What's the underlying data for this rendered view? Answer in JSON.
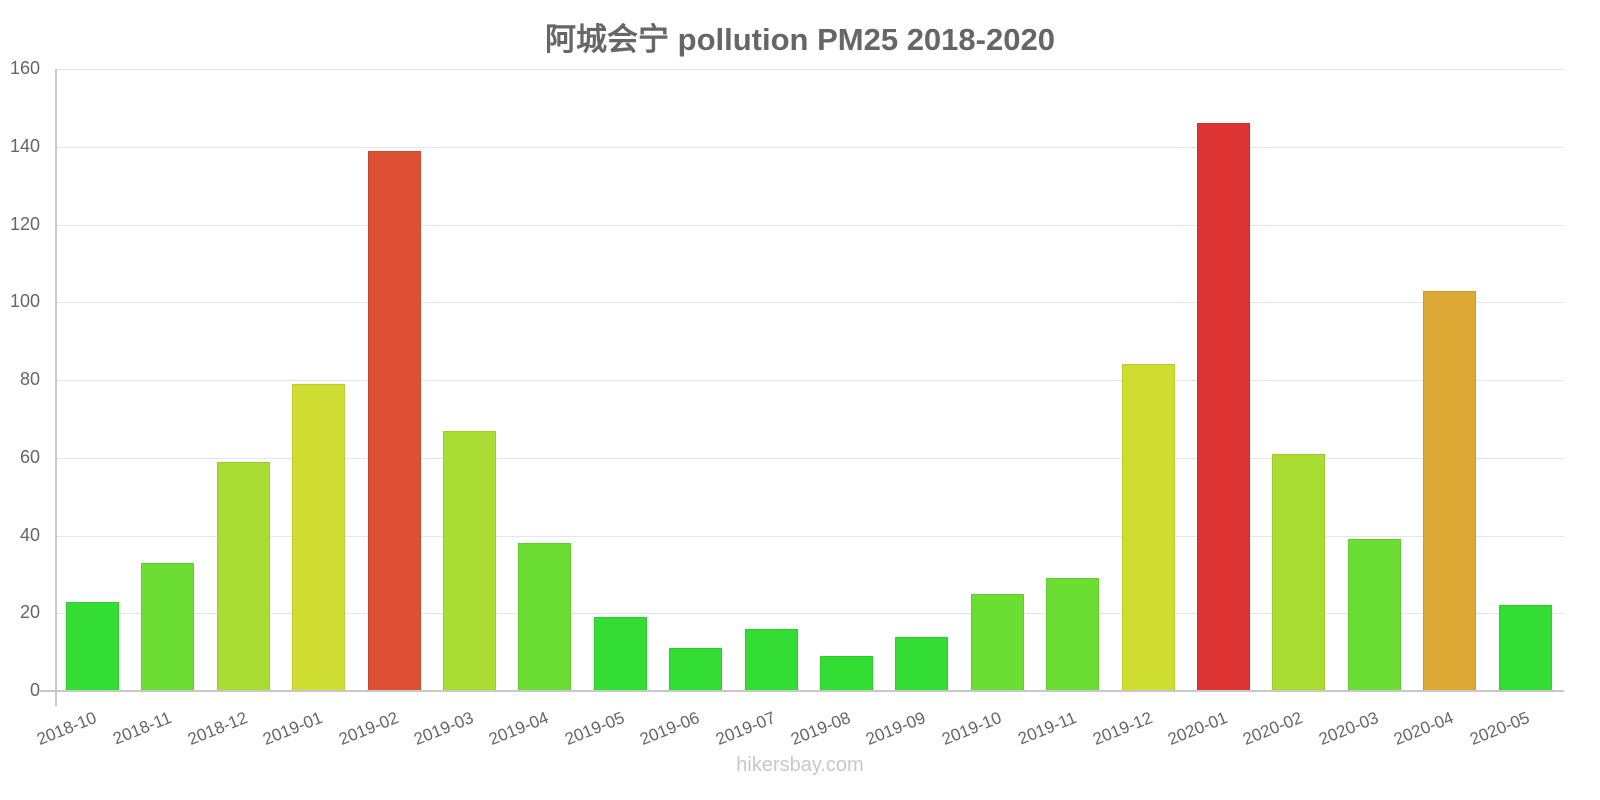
{
  "chart_data": {
    "type": "bar",
    "title": "阿城会宁 pollution PM25 2018-2020",
    "xlabel": "",
    "ylabel": "",
    "ylim": [
      0,
      160
    ],
    "yticks": [
      0,
      20,
      40,
      60,
      80,
      100,
      120,
      140,
      160
    ],
    "grid": true,
    "legend": null,
    "categories": [
      "2018-10",
      "2018-11",
      "2018-12",
      "2019-01",
      "2019-02",
      "2019-03",
      "2019-04",
      "2019-05",
      "2019-06",
      "2019-07",
      "2019-08",
      "2019-09",
      "2019-10",
      "2019-11",
      "2019-12",
      "2020-01",
      "2020-02",
      "2020-03",
      "2020-04",
      "2020-05"
    ],
    "values": [
      23,
      33,
      59,
      79,
      139,
      67,
      38,
      19,
      11,
      16,
      9,
      14,
      25,
      29,
      84,
      146,
      61,
      39,
      103,
      22
    ],
    "colors": [
      "#33dd33",
      "#6cdd33",
      "#aadd33",
      "#cfdd33",
      "#dd5033",
      "#aadd33",
      "#6cdd33",
      "#33dd33",
      "#33dd33",
      "#33dd33",
      "#33dd33",
      "#33dd33",
      "#6cdd33",
      "#6cdd33",
      "#cfdd33",
      "#dd3333",
      "#aadd33",
      "#6cdd33",
      "#dda833",
      "#33dd33"
    ]
  },
  "watermark": "hikersbay.com"
}
